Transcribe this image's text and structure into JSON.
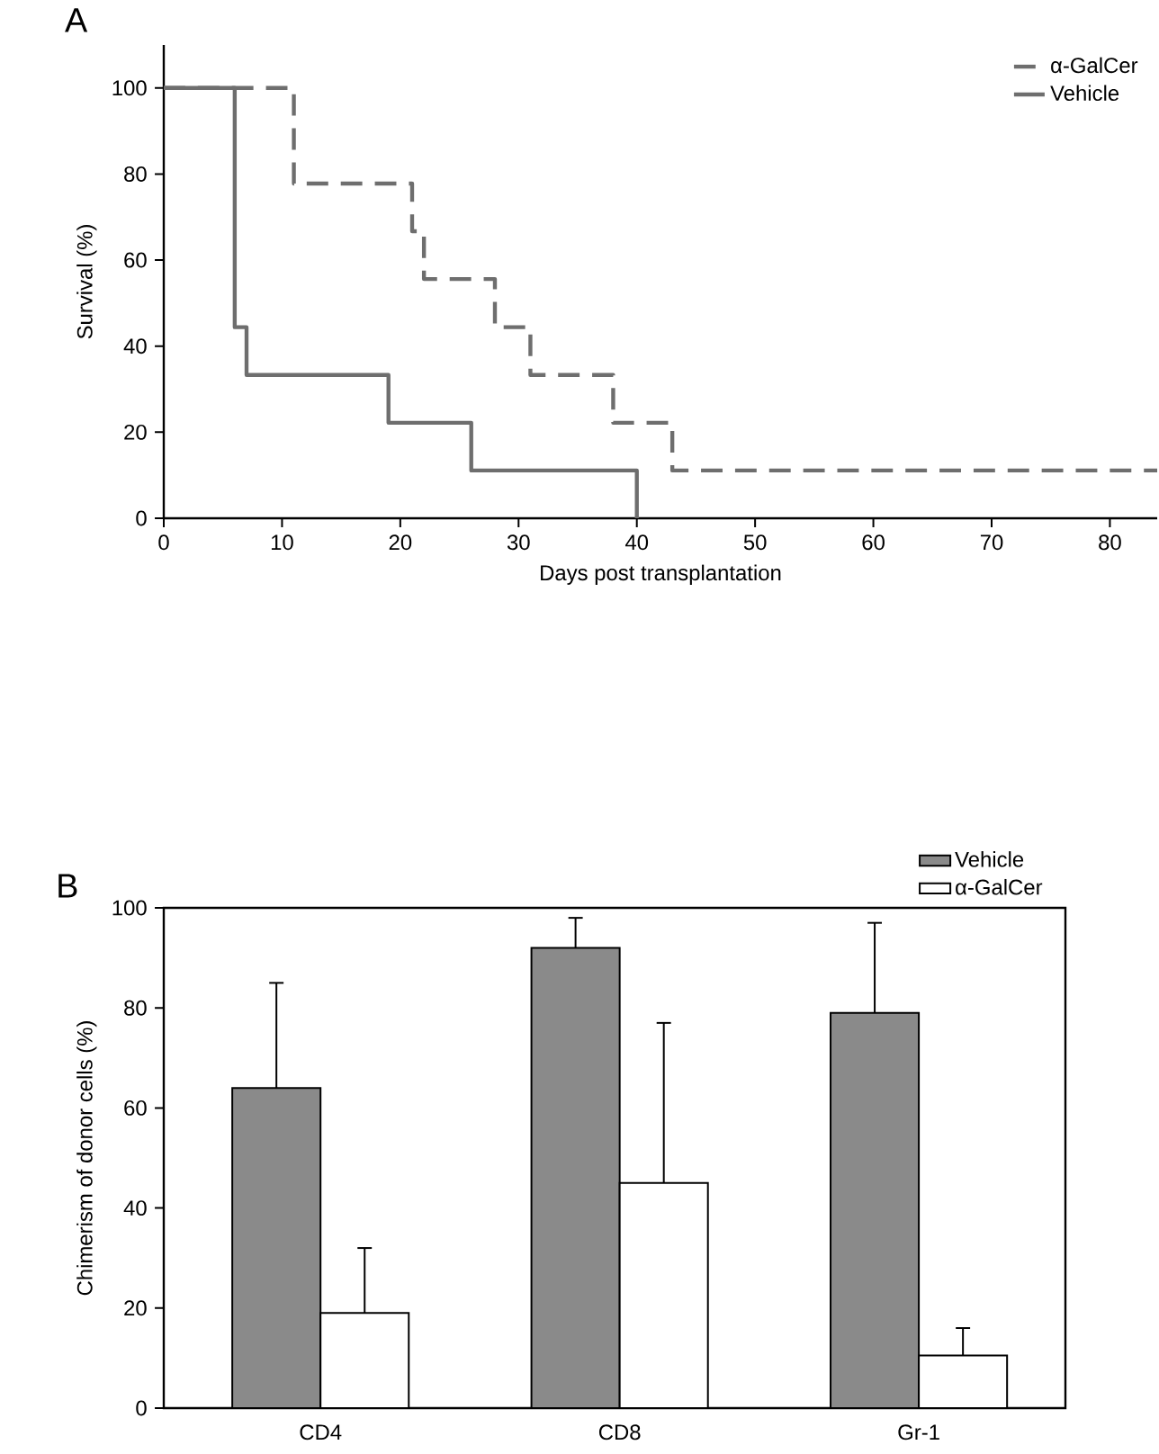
{
  "chart_data": [
    {
      "type": "step",
      "annotations": [
        "A"
      ],
      "xlabel": "Days post transplantation",
      "ylabel": "Survival (%)",
      "xlim": [
        0,
        84
      ],
      "ylim": [
        0,
        110
      ],
      "xticks": [
        0,
        10,
        20,
        30,
        40,
        50,
        60,
        70,
        80
      ],
      "yticks": [
        0,
        20,
        40,
        60,
        80,
        100
      ],
      "legend": "top right",
      "marker": "none",
      "series": [
        {
          "name": "α-GalCer",
          "color": "#6e6e6e",
          "line_style": "dashed",
          "x": [
            0,
            11,
            21,
            22,
            28,
            31,
            38,
            43,
            84
          ],
          "values": [
            100,
            77.8,
            66.7,
            55.6,
            44.4,
            33.3,
            22.2,
            11.1,
            11.1
          ]
        },
        {
          "name": "Vehicle",
          "color": "#6e6e6e",
          "line_style": "solid",
          "x": [
            0,
            6,
            7,
            19,
            26,
            40
          ],
          "values": [
            100,
            44.4,
            33.3,
            22.2,
            11.1,
            0
          ]
        }
      ]
    },
    {
      "type": "bar",
      "annotations": [
        "B"
      ],
      "ylabel": "Chimerism of donor cells (%)",
      "categories": [
        "CD4",
        "CD8",
        "Gr-1"
      ],
      "ylim": [
        0,
        100
      ],
      "yticks": [
        0,
        20,
        40,
        60,
        80,
        100
      ],
      "legend": "top right",
      "series": [
        {
          "name": "Vehicle",
          "color": "#8a8a8a",
          "values": [
            64,
            92,
            79
          ],
          "errors": [
            [
              64,
              85
            ],
            [
              92,
              98
            ],
            [
              79,
              97
            ]
          ]
        },
        {
          "name": "α-GalCer",
          "color": "#ffffff",
          "values": [
            19,
            45,
            10.5
          ],
          "errors": [
            [
              19,
              32
            ],
            [
              45,
              77
            ],
            [
              10.5,
              16
            ]
          ]
        }
      ]
    }
  ]
}
